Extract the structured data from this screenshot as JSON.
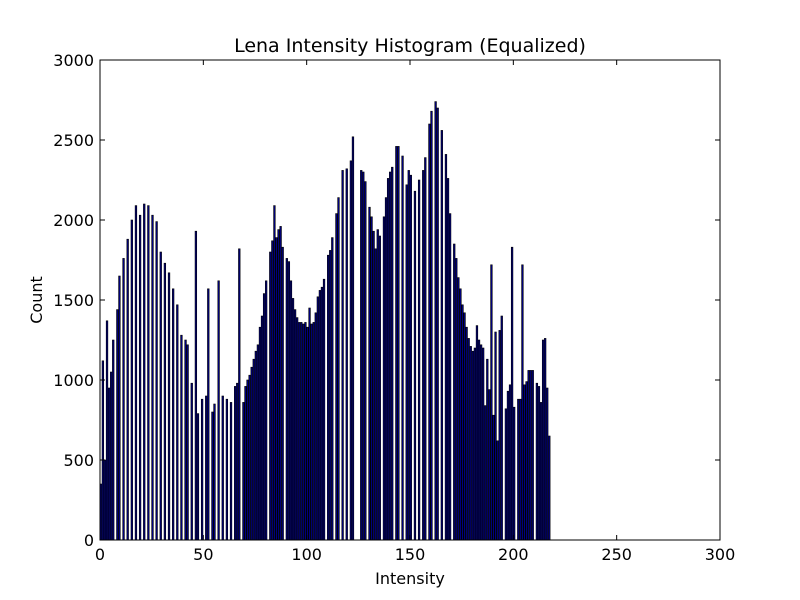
{
  "chart_data": {
    "type": "bar",
    "title": "Lena Intensity Histogram (Equalized)",
    "xlabel": "Intensity",
    "ylabel": "Count",
    "xlim": [
      0,
      300
    ],
    "ylim": [
      0,
      3000
    ],
    "xticks": [
      0,
      50,
      100,
      150,
      200,
      250,
      300
    ],
    "yticks": [
      0,
      500,
      1000,
      1500,
      2000,
      2500,
      3000
    ],
    "grid": false,
    "legend": "none",
    "bar_color": "#000080",
    "bar_edge_color": "#000000",
    "x": [
      0,
      1,
      2,
      3,
      4,
      5,
      6,
      7,
      8,
      9,
      10,
      11,
      12,
      13,
      14,
      15,
      16,
      17,
      18,
      19,
      20,
      21,
      22,
      23,
      24,
      25,
      26,
      27,
      28,
      29,
      30,
      31,
      32,
      33,
      34,
      35,
      36,
      37,
      38,
      39,
      40,
      41,
      42,
      43,
      44,
      45,
      46,
      47,
      48,
      49,
      50,
      51,
      52,
      53,
      54,
      55,
      56,
      57,
      58,
      59,
      60,
      61,
      62,
      63,
      64,
      65,
      66,
      67,
      68,
      69,
      70,
      71,
      72,
      73,
      74,
      75,
      76,
      77,
      78,
      79,
      80,
      81,
      82,
      83,
      84,
      85,
      86,
      87,
      88,
      89,
      90,
      91,
      92,
      93,
      94,
      95,
      96,
      97,
      98,
      99,
      100,
      101,
      102,
      103,
      104,
      105,
      106,
      107,
      108,
      109,
      110,
      111,
      112,
      113,
      114,
      115,
      116,
      117,
      118,
      119,
      120,
      121,
      122,
      123,
      124,
      125,
      126,
      127,
      128,
      129,
      130,
      131,
      132,
      133,
      134,
      135,
      136,
      137,
      138,
      139,
      140,
      141,
      142,
      143,
      144,
      145,
      146,
      147,
      148,
      149,
      150,
      151,
      152,
      153,
      154,
      155,
      156,
      157,
      158,
      159,
      160,
      161,
      162,
      163,
      164,
      165,
      166,
      167,
      168,
      169,
      170,
      171,
      172,
      173,
      174,
      175,
      176,
      177,
      178,
      179,
      180,
      181,
      182,
      183,
      184,
      185,
      186,
      187,
      188,
      189,
      190,
      191,
      192,
      193,
      194,
      195,
      196,
      197,
      198,
      199,
      200,
      201,
      202,
      203,
      204,
      205,
      206,
      207,
      208,
      209,
      210,
      211,
      212,
      213,
      214,
      215,
      216,
      217,
      218,
      219,
      220,
      221,
      222,
      223,
      224,
      225,
      226,
      227,
      228,
      229,
      230,
      231,
      232,
      233,
      234,
      235,
      236,
      237,
      238,
      239,
      240,
      241,
      242,
      243,
      244,
      245,
      246,
      247,
      248,
      249,
      250,
      251,
      252,
      253,
      254,
      255
    ],
    "values": [
      350,
      1120,
      500,
      1370,
      950,
      1050,
      1250,
      0,
      1440,
      1650,
      0,
      1760,
      0,
      1880,
      0,
      2000,
      0,
      2090,
      0,
      2030,
      0,
      2100,
      0,
      2090,
      0,
      2030,
      0,
      1990,
      0,
      1800,
      0,
      1730,
      0,
      1670,
      0,
      1570,
      0,
      1470,
      0,
      1280,
      0,
      1250,
      1220,
      0,
      980,
      0,
      1930,
      790,
      0,
      880,
      0,
      900,
      1570,
      0,
      800,
      850,
      0,
      1620,
      0,
      900,
      0,
      880,
      0,
      860,
      0,
      960,
      980,
      1820,
      0,
      860,
      960,
      1000,
      1030,
      1080,
      1130,
      1180,
      1220,
      1330,
      1400,
      1540,
      1620,
      0,
      1800,
      1870,
      2090,
      1890,
      1940,
      1960,
      1830,
      0,
      1760,
      1740,
      1620,
      1510,
      1440,
      1390,
      1360,
      1360,
      1350,
      1360,
      1330,
      1450,
      1350,
      1360,
      1420,
      1520,
      1560,
      1580,
      1630,
      0,
      1780,
      1810,
      1890,
      0,
      2040,
      2140,
      0,
      2310,
      0,
      2320,
      0,
      2370,
      2520,
      0,
      0,
      0,
      2310,
      2300,
      2240,
      0,
      2080,
      2020,
      1930,
      1820,
      1940,
      1900,
      0,
      2020,
      2140,
      2260,
      2300,
      2330,
      0,
      2460,
      2460,
      0,
      2400,
      0,
      2220,
      2310,
      2280,
      0,
      2180,
      0,
      2250,
      0,
      2310,
      2390,
      0,
      2600,
      2680,
      0,
      2740,
      2700,
      0,
      2560,
      0,
      2410,
      2260,
      2040,
      0,
      1850,
      1760,
      1640,
      1570,
      1470,
      1420,
      1330,
      1260,
      1210,
      1180,
      1200,
      1340,
      1250,
      1220,
      1200,
      840,
      1130,
      940,
      1720,
      780,
      1300,
      620,
      1310,
      1400,
      0,
      820,
      930,
      970,
      1830,
      830,
      0,
      880,
      880,
      1720,
      970,
      990,
      1060,
      1060,
      1060,
      0,
      980,
      960,
      860,
      1250,
      1260,
      950,
      650,
      0,
      0,
      0,
      0,
      0,
      0,
      0,
      0,
      0,
      0,
      0,
      0,
      0,
      0,
      0,
      0,
      0,
      0,
      0,
      0,
      0,
      0,
      0,
      0,
      0,
      0,
      0,
      0,
      0,
      0,
      0,
      0,
      0,
      0,
      0,
      0,
      0,
      0
    ]
  }
}
